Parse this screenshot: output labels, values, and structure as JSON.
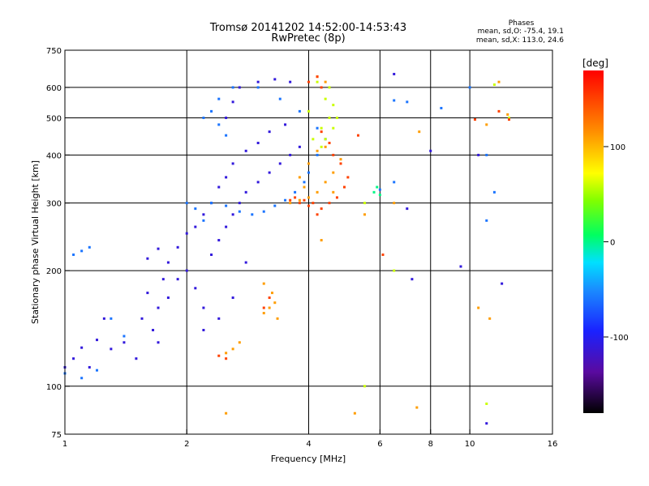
{
  "header": {
    "title_line1": "Tromsø 20141202 14:52:00-14:53:43",
    "title_line2": "RwPretec (8p)",
    "stats_title": "Phases",
    "stats_o": "mean, sd,O: -75.4, 19.1",
    "stats_x": "mean, sd,X: 113.0, 24.6"
  },
  "chart_data": {
    "type": "scatter",
    "xlabel": "Frequency [MHz]",
    "ylabel": "Stationary phase Virtual Height [km]",
    "x_scale": "log",
    "y_scale": "log",
    "xlim": [
      1,
      16
    ],
    "ylim": [
      75,
      750
    ],
    "x_ticks": [
      1,
      2,
      4,
      6,
      8,
      10,
      16
    ],
    "y_ticks": [
      75,
      100,
      200,
      300,
      400,
      500,
      600,
      750
    ],
    "x_gridlines": [
      2,
      4,
      6,
      8,
      10
    ],
    "y_gridlines": [
      100,
      200,
      300,
      400,
      500,
      600
    ],
    "colorbar": {
      "label": "[deg]",
      "range": [
        -180,
        180
      ],
      "ticks": [
        -100,
        0,
        100
      ],
      "colormap": "rainbow"
    },
    "series": [
      {
        "phase_deg": -110,
        "points": [
          [
            1.0,
            112
          ],
          [
            1.05,
            118
          ],
          [
            1.1,
            126
          ],
          [
            1.15,
            112
          ],
          [
            1.2,
            132
          ],
          [
            1.25,
            150
          ],
          [
            1.3,
            125
          ],
          [
            1.4,
            130
          ],
          [
            1.5,
            118
          ],
          [
            1.55,
            150
          ],
          [
            1.6,
            175
          ],
          [
            1.7,
            160
          ],
          [
            1.75,
            190
          ],
          [
            1.8,
            210
          ],
          [
            1.9,
            230
          ],
          [
            2.0,
            250
          ],
          [
            2.1,
            260
          ],
          [
            2.2,
            280
          ],
          [
            2.3,
            300
          ],
          [
            2.4,
            330
          ],
          [
            2.5,
            350
          ],
          [
            2.6,
            380
          ],
          [
            2.8,
            410
          ],
          [
            3.0,
            430
          ],
          [
            3.2,
            460
          ],
          [
            3.5,
            480
          ],
          [
            2.5,
            500
          ],
          [
            2.6,
            550
          ],
          [
            2.7,
            600
          ],
          [
            3.0,
            620
          ],
          [
            3.3,
            630
          ],
          [
            3.6,
            620
          ],
          [
            1.65,
            140
          ],
          [
            1.7,
            130
          ],
          [
            1.8,
            170
          ],
          [
            1.9,
            190
          ],
          [
            2.0,
            200
          ],
          [
            2.1,
            180
          ],
          [
            2.2,
            160
          ],
          [
            2.3,
            220
          ],
          [
            2.4,
            240
          ],
          [
            2.5,
            260
          ],
          [
            2.6,
            280
          ],
          [
            2.7,
            300
          ],
          [
            2.8,
            320
          ],
          [
            3.0,
            340
          ],
          [
            3.2,
            360
          ],
          [
            3.4,
            380
          ],
          [
            3.6,
            400
          ],
          [
            3.8,
            420
          ],
          [
            2.2,
            140
          ],
          [
            2.4,
            150
          ],
          [
            2.6,
            170
          ],
          [
            2.8,
            210
          ],
          [
            1.6,
            215
          ],
          [
            1.7,
            228
          ],
          [
            6.5,
            650
          ],
          [
            7.0,
            290
          ],
          [
            7.2,
            190
          ],
          [
            8.0,
            410
          ],
          [
            10.5,
            400
          ],
          [
            11.0,
            80
          ],
          [
            9.5,
            205
          ],
          [
            12.0,
            185
          ]
        ]
      },
      {
        "phase_deg": -60,
        "points": [
          [
            1.05,
            220
          ],
          [
            1.1,
            225
          ],
          [
            1.15,
            230
          ],
          [
            1.0,
            108
          ],
          [
            1.1,
            105
          ],
          [
            1.2,
            110
          ],
          [
            1.3,
            150
          ],
          [
            1.4,
            135
          ],
          [
            2.3,
            520
          ],
          [
            2.4,
            480
          ],
          [
            2.5,
            450
          ],
          [
            2.2,
            500
          ],
          [
            2.4,
            560
          ],
          [
            2.6,
            600
          ],
          [
            2.3,
            300
          ],
          [
            2.5,
            295
          ],
          [
            2.7,
            285
          ],
          [
            2.9,
            280
          ],
          [
            3.1,
            285
          ],
          [
            3.3,
            295
          ],
          [
            3.5,
            305
          ],
          [
            3.7,
            320
          ],
          [
            3.9,
            340
          ],
          [
            4.0,
            360
          ],
          [
            2.0,
            300
          ],
          [
            2.1,
            290
          ],
          [
            2.2,
            270
          ],
          [
            4.2,
            400
          ],
          [
            4.4,
            440
          ],
          [
            3.0,
            600
          ],
          [
            3.4,
            560
          ],
          [
            3.8,
            520
          ],
          [
            4.2,
            470
          ],
          [
            6.5,
            555
          ],
          [
            7.0,
            550
          ],
          [
            10.0,
            600
          ],
          [
            11.0,
            400
          ],
          [
            11.5,
            320
          ],
          [
            11.0,
            270
          ],
          [
            8.5,
            530
          ],
          [
            6.0,
            325
          ],
          [
            6.5,
            340
          ]
        ]
      },
      {
        "phase_deg": 0,
        "points": [
          [
            5.8,
            320
          ],
          [
            5.9,
            330
          ],
          [
            6.0,
            315
          ]
        ]
      },
      {
        "phase_deg": 60,
        "points": [
          [
            4.1,
            440
          ],
          [
            4.3,
            470
          ],
          [
            4.5,
            500
          ],
          [
            4.6,
            540
          ],
          [
            4.4,
            560
          ],
          [
            4.5,
            600
          ],
          [
            4.2,
            620
          ],
          [
            4.0,
            520
          ],
          [
            4.7,
            500
          ],
          [
            4.6,
            470
          ],
          [
            4.4,
            440
          ],
          [
            4.3,
            420
          ],
          [
            5.5,
            100
          ],
          [
            6.5,
            200
          ],
          [
            11.0,
            90
          ],
          [
            11.5,
            610
          ],
          [
            12.5,
            500
          ],
          [
            5.5,
            300
          ]
        ]
      },
      {
        "phase_deg": 110,
        "points": [
          [
            3.6,
            300
          ],
          [
            3.8,
            305
          ],
          [
            4.0,
            310
          ],
          [
            4.2,
            320
          ],
          [
            4.4,
            340
          ],
          [
            4.6,
            360
          ],
          [
            4.8,
            390
          ],
          [
            3.8,
            350
          ],
          [
            4.0,
            380
          ],
          [
            4.2,
            410
          ],
          [
            4.4,
            420
          ],
          [
            3.9,
            330
          ],
          [
            4.6,
            320
          ],
          [
            3.2,
            160
          ],
          [
            3.3,
            165
          ],
          [
            3.1,
            155
          ],
          [
            3.25,
            175
          ],
          [
            3.35,
            150
          ],
          [
            3.1,
            185
          ],
          [
            2.5,
            122
          ],
          [
            2.6,
            125
          ],
          [
            2.7,
            130
          ],
          [
            2.5,
            85
          ],
          [
            4.3,
            240
          ],
          [
            5.2,
            85
          ],
          [
            5.5,
            280
          ],
          [
            6.5,
            300
          ],
          [
            7.5,
            460
          ],
          [
            7.4,
            88
          ],
          [
            10.5,
            160
          ],
          [
            11.2,
            150
          ],
          [
            11.0,
            480
          ],
          [
            12.4,
            510
          ],
          [
            11.8,
            620
          ],
          [
            4.2,
            640
          ],
          [
            4.4,
            620
          ]
        ]
      },
      {
        "phase_deg": 150,
        "points": [
          [
            4.2,
            280
          ],
          [
            4.3,
            290
          ],
          [
            4.1,
            300
          ],
          [
            4.0,
            295
          ],
          [
            3.9,
            305
          ],
          [
            4.5,
            300
          ],
          [
            4.7,
            310
          ],
          [
            4.9,
            330
          ],
          [
            5.0,
            350
          ],
          [
            4.8,
            380
          ],
          [
            4.6,
            400
          ],
          [
            4.5,
            430
          ],
          [
            4.3,
            460
          ],
          [
            4.2,
            640
          ],
          [
            4.0,
            620
          ],
          [
            4.3,
            600
          ],
          [
            3.8,
            300
          ],
          [
            3.7,
            310
          ],
          [
            3.6,
            305
          ],
          [
            2.4,
            120
          ],
          [
            2.5,
            118
          ],
          [
            3.1,
            160
          ],
          [
            3.2,
            170
          ],
          [
            5.3,
            450
          ],
          [
            6.1,
            220
          ],
          [
            10.3,
            495
          ],
          [
            11.8,
            520
          ],
          [
            12.5,
            495
          ]
        ]
      }
    ]
  }
}
